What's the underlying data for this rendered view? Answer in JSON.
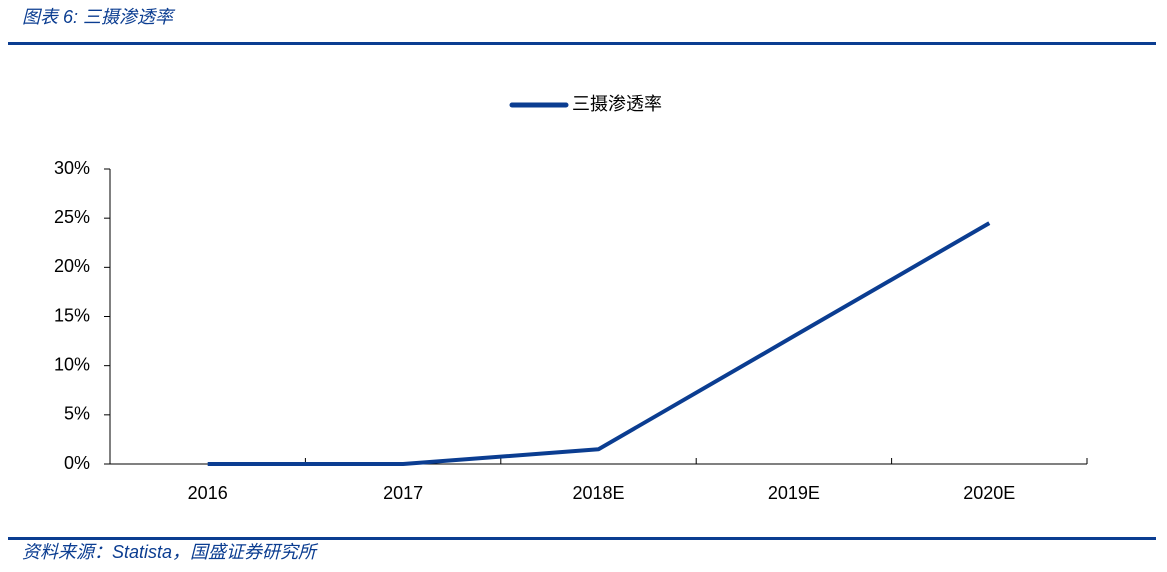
{
  "header": {
    "title": "图表 6: 三摄渗透率"
  },
  "chart_data": {
    "type": "line",
    "categories": [
      "2016",
      "2017",
      "2018E",
      "2019E",
      "2020E"
    ],
    "series": [
      {
        "name": "三摄渗透率",
        "color": "#0b3d91",
        "values": [
          0,
          0,
          1.5,
          13,
          24.5
        ]
      }
    ],
    "ylim": [
      0,
      30
    ],
    "yticks": [
      {
        "value": 0,
        "label": "0%"
      },
      {
        "value": 5,
        "label": "5%"
      },
      {
        "value": 10,
        "label": "10%"
      },
      {
        "value": 15,
        "label": "15%"
      },
      {
        "value": 20,
        "label": "20%"
      },
      {
        "value": 25,
        "label": "25%"
      },
      {
        "value": 30,
        "label": "30%"
      }
    ],
    "legend": "top"
  },
  "footer": {
    "source": "资料来源：Statista，国盛证券研究所"
  }
}
